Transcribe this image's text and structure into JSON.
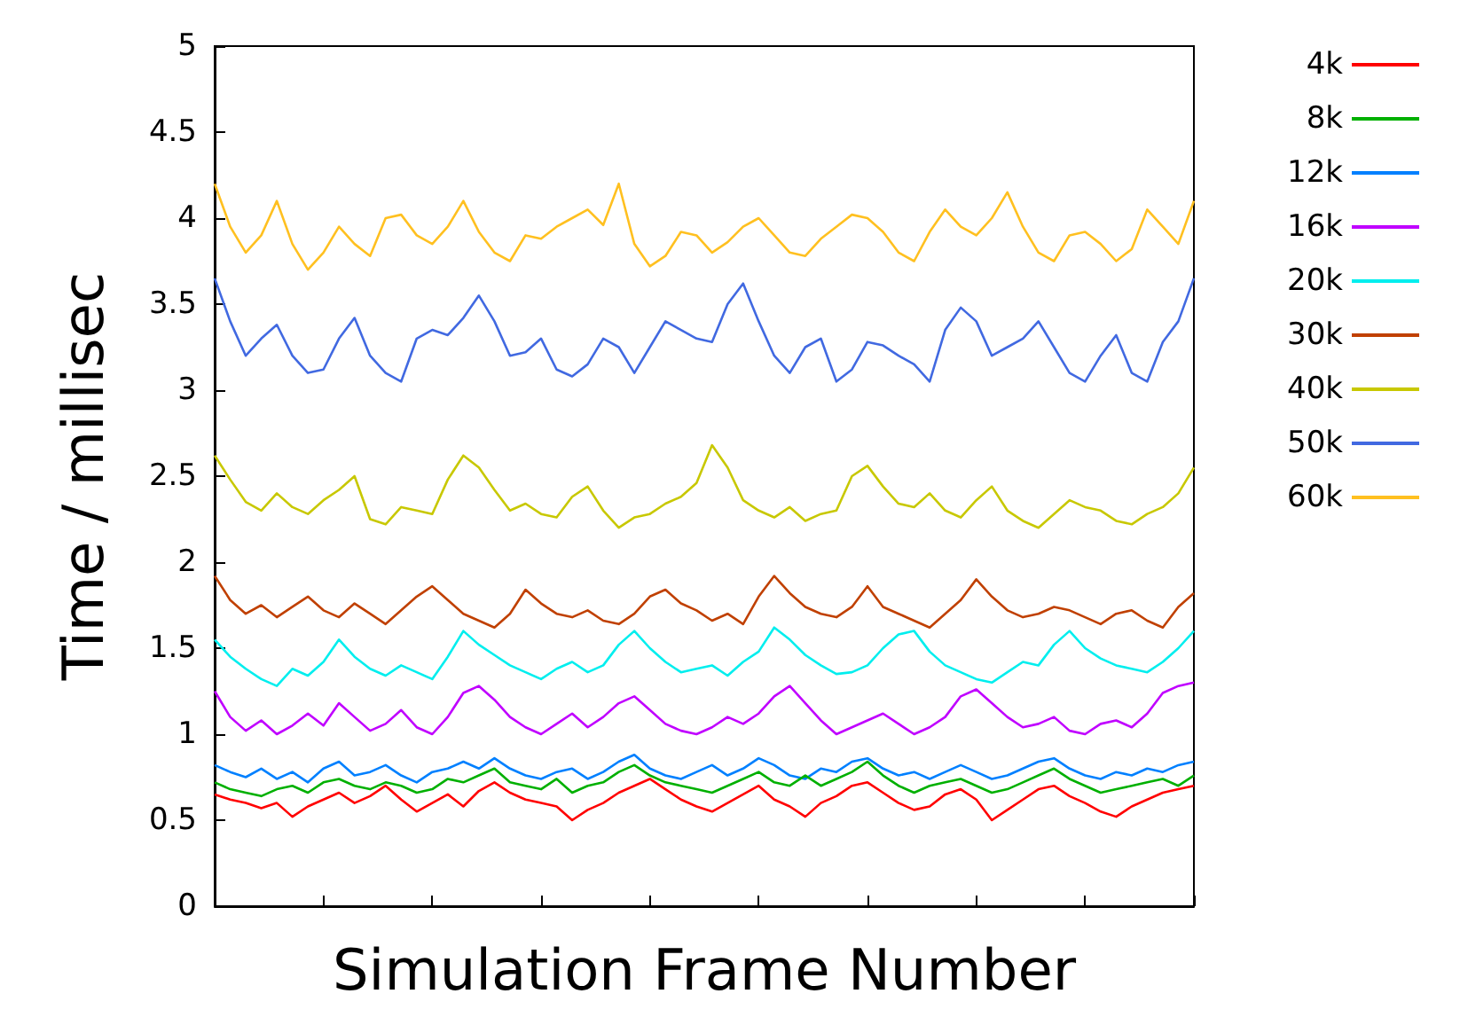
{
  "chart_data": {
    "type": "line",
    "xlabel": "Simulation Frame Number",
    "ylabel": "Time / millisec",
    "categories": [
      null,
      null,
      null,
      null,
      null,
      null,
      null,
      null,
      null,
      null,
      null,
      null,
      null,
      null,
      null,
      null,
      null,
      null,
      null,
      null,
      null,
      null,
      null,
      null,
      null,
      null,
      null,
      null,
      null,
      null,
      null,
      null,
      null,
      null,
      null,
      null,
      null,
      null,
      null,
      null,
      null,
      null,
      null,
      null,
      null,
      null,
      null,
      null,
      null,
      null,
      null,
      null,
      null,
      null,
      null,
      null,
      null,
      null,
      null,
      null,
      null,
      null,
      null,
      null
    ],
    "ylim": [
      0,
      5
    ],
    "yticks": [
      0,
      0.5,
      1,
      1.5,
      2,
      2.5,
      3,
      3.5,
      4,
      4.5,
      5
    ],
    "grid": false,
    "legend": "right",
    "marker": "none",
    "line_style": "solid",
    "series": [
      {
        "name": "4k",
        "color": "#ff0000",
        "values": [
          0.65,
          0.62,
          0.6,
          0.57,
          0.6,
          0.52,
          0.58,
          0.62,
          0.66,
          0.6,
          0.64,
          0.7,
          0.62,
          0.55,
          0.6,
          0.65,
          0.58,
          0.67,
          0.72,
          0.66,
          0.62,
          0.6,
          0.58,
          0.5,
          0.56,
          0.6,
          0.66,
          0.7,
          0.74,
          0.68,
          0.62,
          0.58,
          0.55,
          0.6,
          0.65,
          0.7,
          0.62,
          0.58,
          0.52,
          0.6,
          0.64,
          0.7,
          0.72,
          0.66,
          0.6,
          0.56,
          0.58,
          0.65,
          0.68,
          0.62,
          0.5,
          0.56,
          0.62,
          0.68,
          0.7,
          0.64,
          0.6,
          0.55,
          0.52,
          0.58,
          0.62,
          0.66,
          0.68,
          0.7
        ]
      },
      {
        "name": "8k",
        "color": "#00b000",
        "values": [
          0.72,
          0.68,
          0.66,
          0.64,
          0.68,
          0.7,
          0.66,
          0.72,
          0.74,
          0.7,
          0.68,
          0.72,
          0.7,
          0.66,
          0.68,
          0.74,
          0.72,
          0.76,
          0.8,
          0.72,
          0.7,
          0.68,
          0.74,
          0.66,
          0.7,
          0.72,
          0.78,
          0.82,
          0.76,
          0.72,
          0.7,
          0.68,
          0.66,
          0.7,
          0.74,
          0.78,
          0.72,
          0.7,
          0.76,
          0.7,
          0.74,
          0.78,
          0.84,
          0.76,
          0.7,
          0.66,
          0.7,
          0.72,
          0.74,
          0.7,
          0.66,
          0.68,
          0.72,
          0.76,
          0.8,
          0.74,
          0.7,
          0.66,
          0.68,
          0.7,
          0.72,
          0.74,
          0.7,
          0.76
        ]
      },
      {
        "name": "12k",
        "color": "#0080ff",
        "values": [
          0.82,
          0.78,
          0.75,
          0.8,
          0.74,
          0.78,
          0.72,
          0.8,
          0.84,
          0.76,
          0.78,
          0.82,
          0.76,
          0.72,
          0.78,
          0.8,
          0.84,
          0.8,
          0.86,
          0.8,
          0.76,
          0.74,
          0.78,
          0.8,
          0.74,
          0.78,
          0.84,
          0.88,
          0.8,
          0.76,
          0.74,
          0.78,
          0.82,
          0.76,
          0.8,
          0.86,
          0.82,
          0.76,
          0.74,
          0.8,
          0.78,
          0.84,
          0.86,
          0.8,
          0.76,
          0.78,
          0.74,
          0.78,
          0.82,
          0.78,
          0.74,
          0.76,
          0.8,
          0.84,
          0.86,
          0.8,
          0.76,
          0.74,
          0.78,
          0.76,
          0.8,
          0.78,
          0.82,
          0.84
        ]
      },
      {
        "name": "16k",
        "color": "#c000ff",
        "values": [
          1.25,
          1.1,
          1.02,
          1.08,
          1.0,
          1.05,
          1.12,
          1.05,
          1.18,
          1.1,
          1.02,
          1.06,
          1.14,
          1.04,
          1.0,
          1.1,
          1.24,
          1.28,
          1.2,
          1.1,
          1.04,
          1.0,
          1.06,
          1.12,
          1.04,
          1.1,
          1.18,
          1.22,
          1.14,
          1.06,
          1.02,
          1.0,
          1.04,
          1.1,
          1.06,
          1.12,
          1.22,
          1.28,
          1.18,
          1.08,
          1.0,
          1.04,
          1.08,
          1.12,
          1.06,
          1.0,
          1.04,
          1.1,
          1.22,
          1.26,
          1.18,
          1.1,
          1.04,
          1.06,
          1.1,
          1.02,
          1.0,
          1.06,
          1.08,
          1.04,
          1.12,
          1.24,
          1.28,
          1.3
        ]
      },
      {
        "name": "20k",
        "color": "#00eeee",
        "values": [
          1.55,
          1.45,
          1.38,
          1.32,
          1.28,
          1.38,
          1.34,
          1.42,
          1.55,
          1.45,
          1.38,
          1.34,
          1.4,
          1.36,
          1.32,
          1.45,
          1.6,
          1.52,
          1.46,
          1.4,
          1.36,
          1.32,
          1.38,
          1.42,
          1.36,
          1.4,
          1.52,
          1.6,
          1.5,
          1.42,
          1.36,
          1.38,
          1.4,
          1.34,
          1.42,
          1.48,
          1.62,
          1.55,
          1.46,
          1.4,
          1.35,
          1.36,
          1.4,
          1.5,
          1.58,
          1.6,
          1.48,
          1.4,
          1.36,
          1.32,
          1.3,
          1.36,
          1.42,
          1.4,
          1.52,
          1.6,
          1.5,
          1.44,
          1.4,
          1.38,
          1.36,
          1.42,
          1.5,
          1.6
        ]
      },
      {
        "name": "30k",
        "color": "#c04000",
        "values": [
          1.92,
          1.78,
          1.7,
          1.75,
          1.68,
          1.74,
          1.8,
          1.72,
          1.68,
          1.76,
          1.7,
          1.64,
          1.72,
          1.8,
          1.86,
          1.78,
          1.7,
          1.66,
          1.62,
          1.7,
          1.84,
          1.76,
          1.7,
          1.68,
          1.72,
          1.66,
          1.64,
          1.7,
          1.8,
          1.84,
          1.76,
          1.72,
          1.66,
          1.7,
          1.64,
          1.8,
          1.92,
          1.82,
          1.74,
          1.7,
          1.68,
          1.74,
          1.86,
          1.74,
          1.7,
          1.66,
          1.62,
          1.7,
          1.78,
          1.9,
          1.8,
          1.72,
          1.68,
          1.7,
          1.74,
          1.72,
          1.68,
          1.64,
          1.7,
          1.72,
          1.66,
          1.62,
          1.74,
          1.82
        ]
      },
      {
        "name": "40k",
        "color": "#c8c800",
        "values": [
          2.62,
          2.48,
          2.35,
          2.3,
          2.4,
          2.32,
          2.28,
          2.36,
          2.42,
          2.5,
          2.25,
          2.22,
          2.32,
          2.3,
          2.28,
          2.48,
          2.62,
          2.55,
          2.42,
          2.3,
          2.34,
          2.28,
          2.26,
          2.38,
          2.44,
          2.3,
          2.2,
          2.26,
          2.28,
          2.34,
          2.38,
          2.46,
          2.68,
          2.55,
          2.36,
          2.3,
          2.26,
          2.32,
          2.24,
          2.28,
          2.3,
          2.5,
          2.56,
          2.44,
          2.34,
          2.32,
          2.4,
          2.3,
          2.26,
          2.36,
          2.44,
          2.3,
          2.24,
          2.2,
          2.28,
          2.36,
          2.32,
          2.3,
          2.24,
          2.22,
          2.28,
          2.32,
          2.4,
          2.55
        ]
      },
      {
        "name": "50k",
        "color": "#4169e1",
        "values": [
          3.65,
          3.4,
          3.2,
          3.3,
          3.38,
          3.2,
          3.1,
          3.12,
          3.3,
          3.42,
          3.2,
          3.1,
          3.05,
          3.3,
          3.35,
          3.32,
          3.42,
          3.55,
          3.4,
          3.2,
          3.22,
          3.3,
          3.12,
          3.08,
          3.15,
          3.3,
          3.25,
          3.1,
          3.25,
          3.4,
          3.35,
          3.3,
          3.28,
          3.5,
          3.62,
          3.4,
          3.2,
          3.1,
          3.25,
          3.3,
          3.05,
          3.12,
          3.28,
          3.26,
          3.2,
          3.15,
          3.05,
          3.35,
          3.48,
          3.4,
          3.2,
          3.25,
          3.3,
          3.4,
          3.25,
          3.1,
          3.05,
          3.2,
          3.32,
          3.1,
          3.05,
          3.28,
          3.4,
          3.65
        ]
      },
      {
        "name": "60k",
        "color": "#ffc020",
        "values": [
          4.2,
          3.95,
          3.8,
          3.9,
          4.1,
          3.85,
          3.7,
          3.8,
          3.95,
          3.85,
          3.78,
          4.0,
          4.02,
          3.9,
          3.85,
          3.95,
          4.1,
          3.92,
          3.8,
          3.75,
          3.9,
          3.88,
          3.95,
          4.0,
          4.05,
          3.96,
          4.2,
          3.85,
          3.72,
          3.78,
          3.92,
          3.9,
          3.8,
          3.86,
          3.95,
          4.0,
          3.9,
          3.8,
          3.78,
          3.88,
          3.95,
          4.02,
          4.0,
          3.92,
          3.8,
          3.75,
          3.92,
          4.05,
          3.95,
          3.9,
          4.0,
          4.15,
          3.95,
          3.8,
          3.75,
          3.9,
          3.92,
          3.85,
          3.75,
          3.82,
          4.05,
          3.95,
          3.85,
          4.1
        ]
      }
    ]
  }
}
